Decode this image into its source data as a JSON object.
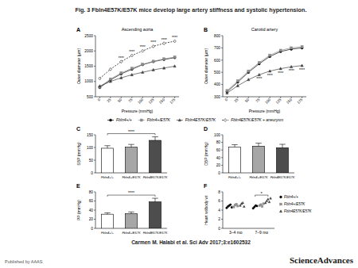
{
  "title": "Fig. 3 Fbln4E57K/E57K mice develop large artery stiffness and systolic hypertension.",
  "chart_data": [
    {
      "panel": "A",
      "type": "line",
      "title": "Ascending aorta",
      "x_label": "Pressure (mmHg)",
      "y_label": "Outer diameter (µm)",
      "x": [
        0,
        25,
        50,
        75,
        100,
        125,
        150,
        175
      ],
      "xlim": [
        -10,
        185
      ],
      "xticks": [
        0,
        25,
        50,
        75,
        100,
        125,
        150,
        175
      ],
      "ylim": [
        500,
        2500
      ],
      "yticks": [
        500,
        1000,
        1500,
        2000,
        2500
      ],
      "legend": "bottom",
      "series": [
        {
          "name": "Fbln4+/+",
          "color": "#000000",
          "marker": "circle",
          "line_style": "solid",
          "values": [
            800,
            1050,
            1250,
            1400,
            1550,
            1650,
            1720,
            1780
          ]
        },
        {
          "name": "Fbln4+/E57K",
          "color": "#8c8c8c",
          "marker": "square",
          "line_style": "solid",
          "values": [
            820,
            1080,
            1280,
            1430,
            1560,
            1660,
            1740,
            1800
          ]
        },
        {
          "name": "Fbln4E57K/E57K",
          "color": "#404040",
          "marker": "triangle",
          "line_style": "solid",
          "values": [
            850,
            1000,
            1120,
            1220,
            1300,
            1380,
            1440,
            1500
          ]
        },
        {
          "name": "Fbln4E57K/E57K + aneurysm",
          "color": "#000000",
          "marker": "diamond",
          "line_style": "dashed",
          "values": [
            1100,
            1400,
            1650,
            1850,
            2000,
            2150,
            2250,
            2320
          ]
        }
      ],
      "annotations": [
        {
          "x": 50,
          "series": 3,
          "text": "****"
        },
        {
          "x": 75,
          "series": 3,
          "text": "****"
        },
        {
          "x": 100,
          "series": 3,
          "text": "****"
        },
        {
          "x": 125,
          "series": 3,
          "text": "****"
        },
        {
          "x": 150,
          "series": 3,
          "text": "****"
        },
        {
          "x": 175,
          "series": 3,
          "text": "****"
        }
      ]
    },
    {
      "panel": "B",
      "type": "line",
      "title": "Carotid artery",
      "x_label": "Pressure (mmHg)",
      "y_label": "Outer diameter (µm)",
      "x": [
        0,
        25,
        50,
        75,
        100,
        125,
        150,
        175
      ],
      "xlim": [
        -10,
        185
      ],
      "xticks": [
        0,
        25,
        50,
        75,
        100,
        125,
        150,
        175
      ],
      "ylim": [
        300,
        800
      ],
      "yticks": [
        300,
        400,
        500,
        600,
        700,
        800
      ],
      "series": [
        {
          "color": "#000000",
          "marker": "circle",
          "line_style": "solid",
          "values": [
            340,
            420,
            500,
            570,
            630,
            670,
            690,
            700
          ]
        },
        {
          "color": "#8c8c8c",
          "marker": "square",
          "line_style": "solid",
          "values": [
            350,
            430,
            510,
            580,
            640,
            680,
            700,
            710
          ]
        },
        {
          "color": "#404040",
          "marker": "triangle",
          "line_style": "solid",
          "values": [
            330,
            390,
            440,
            480,
            510,
            530,
            545,
            555
          ]
        }
      ],
      "annotations": [
        {
          "x": 75,
          "series": 2,
          "text": "****"
        },
        {
          "x": 100,
          "series": 2,
          "text": "****"
        },
        {
          "x": 125,
          "series": 2,
          "text": "****"
        },
        {
          "x": 150,
          "series": 2,
          "text": "****"
        },
        {
          "x": 175,
          "series": 2,
          "text": "****"
        }
      ]
    },
    {
      "panel": "C",
      "type": "bar",
      "y_label": "SBP (mmHg)",
      "categories": [
        "Fbln4+/+",
        "Fbln4+/E57K",
        "Fbln4E57K/E57K"
      ],
      "values": [
        97,
        101,
        128
      ],
      "errors": [
        10,
        11,
        14
      ],
      "colors": [
        "#ffffff",
        "#a6a6a6",
        "#4d4d4d"
      ],
      "ylim": [
        0,
        150
      ],
      "yticks": [
        0,
        50,
        100,
        150
      ],
      "annotations": [
        {
          "from": 0,
          "to": 2,
          "text": "****"
        }
      ]
    },
    {
      "panel": "D",
      "type": "bar",
      "y_label": "DBP (mmHg)",
      "categories": [
        "Fbln4+/+",
        "Fbln4+/E57K",
        "Fbln4E57K/E57K"
      ],
      "values": [
        68,
        70,
        66
      ],
      "errors": [
        6,
        8,
        9
      ],
      "colors": [
        "#ffffff",
        "#a6a6a6",
        "#4d4d4d"
      ],
      "ylim": [
        0,
        100
      ],
      "yticks": [
        0,
        20,
        40,
        60,
        80,
        100
      ]
    },
    {
      "panel": "E",
      "type": "bar",
      "y_label": "PP (mmHg)",
      "categories": [
        "Fbln4+/+",
        "Fbln4+/E57K",
        "Fbln4E57K/E57K"
      ],
      "values": [
        31,
        32,
        58
      ],
      "errors": [
        3,
        4,
        8
      ],
      "colors": [
        "#ffffff",
        "#a6a6a6",
        "#4d4d4d"
      ],
      "ylim": [
        0,
        80
      ],
      "yticks": [
        0,
        20,
        40,
        60,
        80
      ],
      "annotations": [
        {
          "from": 0,
          "to": 2,
          "text": "****"
        }
      ]
    },
    {
      "panel": "F",
      "type": "strip",
      "y_label": "Heart wt/body wt",
      "categories": [
        "3–4 mo",
        "7–9 mo"
      ],
      "ylim": [
        0,
        8
      ],
      "yticks": [
        0,
        2,
        4,
        6,
        8
      ],
      "series": [
        {
          "name": "Fbln4+/+",
          "color": "#000000",
          "marker": "circle",
          "values": [
            [
              4.5,
              4.8,
              5.0,
              5.2,
              4.6
            ],
            [
              4.4,
              4.7,
              5.0,
              4.9
            ]
          ]
        },
        {
          "name": "Fbln4+/E57K",
          "color": "#8c8c8c",
          "marker": "square",
          "values": [
            [
              4.7,
              5.1,
              5.3,
              4.9
            ],
            [
              5.0,
              5.2,
              4.8,
              5.4
            ]
          ]
        },
        {
          "name": "Fbln4E57K/E57K",
          "color": "#404040",
          "marker": "triangle",
          "values": [
            [
              5.0,
              5.4,
              5.6,
              4.8
            ],
            [
              5.6,
              6.0,
              6.4,
              5.8,
              6.6
            ]
          ]
        }
      ],
      "annotations": [
        {
          "category": 1,
          "from": 0,
          "to": 2,
          "text": "*"
        }
      ]
    }
  ],
  "citation": "Carmen M. Halabi et al. Sci Adv 2017;3:e1602532",
  "publisher": "Published by AAAS",
  "logo": "ScienceAdvances"
}
